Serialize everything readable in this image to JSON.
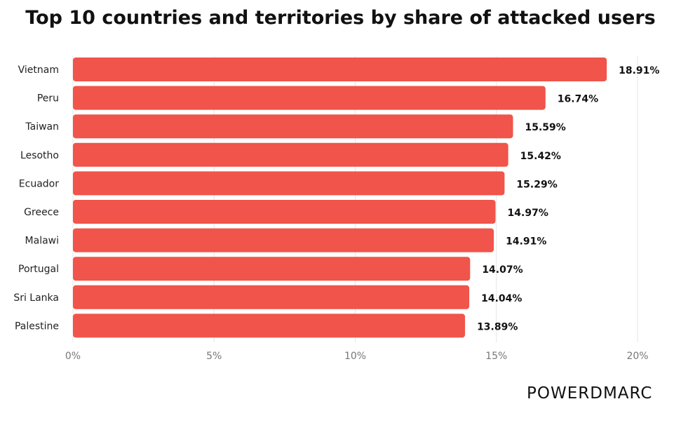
{
  "title": "Top 10 countries and territories by share of attacked users",
  "logo_text": "POWERDMARC",
  "colors": {
    "bar": "#f0544a",
    "grid": "#e6e6e6"
  },
  "chart_data": {
    "type": "bar",
    "orientation": "horizontal",
    "title": "Top 10 countries and territories by share of attacked users",
    "categories": [
      "Vietnam",
      "Peru",
      "Taiwan",
      "Lesotho",
      "Ecuador",
      "Greece",
      "Malawi",
      "Portugal",
      "Sri Lanka",
      "Palestine"
    ],
    "values": [
      18.91,
      16.74,
      15.59,
      15.42,
      15.29,
      14.97,
      14.91,
      14.07,
      14.04,
      13.89
    ],
    "value_labels": [
      "18.91%",
      "16.74%",
      "15.59%",
      "15.42%",
      "15.29%",
      "14.97%",
      "14.91%",
      "14.07%",
      "14.04%",
      "13.89%"
    ],
    "xticks": [
      0,
      5,
      10,
      15,
      20
    ],
    "xtick_labels": [
      "0%",
      "5%",
      "10%",
      "15%",
      "20%"
    ],
    "xlim": [
      0,
      20
    ],
    "xlabel": "",
    "ylabel": "",
    "grid": true,
    "legend": "none"
  }
}
